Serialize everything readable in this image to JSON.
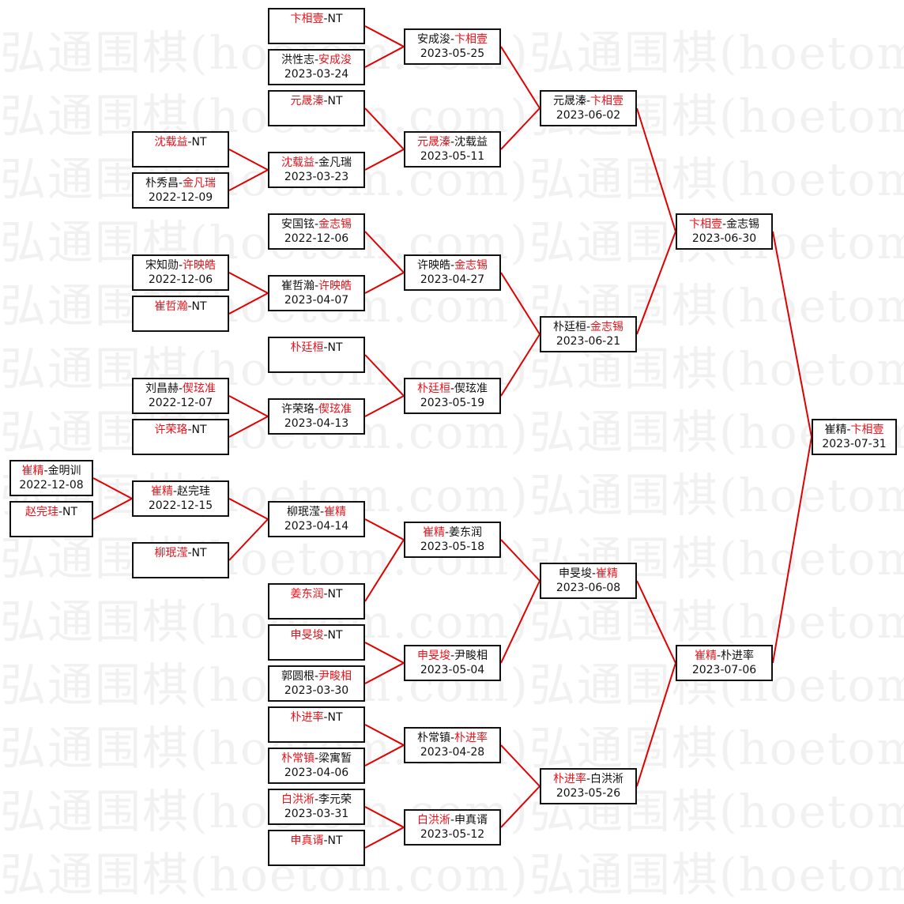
{
  "watermark": "弘通围棋(hoetom.com)",
  "colors": {
    "winner": "#e8131b",
    "line": "#e00000",
    "text": "#111111",
    "border": "#111111"
  },
  "matches": [
    {
      "id": "c0_0",
      "p1": "崔精",
      "p2": "金明训",
      "winner": 1,
      "date": "2022-12-08"
    },
    {
      "id": "c0_1",
      "p1": "赵完珪",
      "p2": "NT",
      "winner": 1,
      "date": ""
    },
    {
      "id": "c1_0",
      "p1": "沈载益",
      "p2": "NT",
      "winner": 1,
      "date": ""
    },
    {
      "id": "c1_1",
      "p1": "朴秀昌",
      "p2": "金凡瑞",
      "winner": 2,
      "date": "2022-12-09"
    },
    {
      "id": "c1_2",
      "p1": "宋知勋",
      "p2": "许映皓",
      "winner": 2,
      "date": "2022-12-06"
    },
    {
      "id": "c1_3",
      "p1": "崔哲瀚",
      "p2": "NT",
      "winner": 1,
      "date": ""
    },
    {
      "id": "c1_4",
      "p1": "刘昌赫",
      "p2": "偰玹准",
      "winner": 2,
      "date": "2022-12-07"
    },
    {
      "id": "c1_5",
      "p1": "许荣珞",
      "p2": "NT",
      "winner": 1,
      "date": ""
    },
    {
      "id": "c1_6",
      "p1": "崔精",
      "p2": "赵完珪",
      "winner": 1,
      "date": "2022-12-15"
    },
    {
      "id": "c1_7",
      "p1": "柳珉滢",
      "p2": "NT",
      "winner": 1,
      "date": ""
    },
    {
      "id": "c2_0",
      "p1": "卞相壹",
      "p2": "NT",
      "winner": 1,
      "date": ""
    },
    {
      "id": "c2_1",
      "p1": "洪性志",
      "p2": "安成浚",
      "winner": 2,
      "date": "2023-03-24"
    },
    {
      "id": "c2_2",
      "p1": "元晟溱",
      "p2": "NT",
      "winner": 1,
      "date": ""
    },
    {
      "id": "c2_3",
      "p1": "沈载益",
      "p2": "金凡瑞",
      "winner": 1,
      "date": "2023-03-23"
    },
    {
      "id": "c2_4",
      "p1": "安国铉",
      "p2": "金志锡",
      "winner": 2,
      "date": "2022-12-06"
    },
    {
      "id": "c2_5",
      "p1": "崔哲瀚",
      "p2": "许映皓",
      "winner": 2,
      "date": "2023-04-07"
    },
    {
      "id": "c2_6",
      "p1": "朴廷桓",
      "p2": "NT",
      "winner": 1,
      "date": ""
    },
    {
      "id": "c2_7",
      "p1": "许荣珞",
      "p2": "偰玹准",
      "winner": 2,
      "date": "2023-04-13"
    },
    {
      "id": "c2_8",
      "p1": "柳珉滢",
      "p2": "崔精",
      "winner": 2,
      "date": "2023-04-14"
    },
    {
      "id": "c2_9",
      "p1": "姜东润",
      "p2": "NT",
      "winner": 1,
      "date": ""
    },
    {
      "id": "c2_10",
      "p1": "申旻埈",
      "p2": "NT",
      "winner": 1,
      "date": ""
    },
    {
      "id": "c2_11",
      "p1": "郭圆根",
      "p2": "尹畯相",
      "winner": 2,
      "date": "2023-03-30"
    },
    {
      "id": "c2_12",
      "p1": "朴进率",
      "p2": "NT",
      "winner": 1,
      "date": ""
    },
    {
      "id": "c2_13",
      "p1": "朴常镇",
      "p2": "梁寓暂",
      "winner": 1,
      "date": "2023-04-06"
    },
    {
      "id": "c2_14",
      "p1": "白洪淅",
      "p2": "李元荣",
      "winner": 1,
      "date": "2023-03-31"
    },
    {
      "id": "c2_15",
      "p1": "申真谞",
      "p2": "NT",
      "winner": 1,
      "date": ""
    },
    {
      "id": "c3_0",
      "p1": "安成浚",
      "p2": "卞相壹",
      "winner": 2,
      "date": "2023-05-25"
    },
    {
      "id": "c3_1",
      "p1": "元晟溱",
      "p2": "沈载益",
      "winner": 1,
      "date": "2023-05-11"
    },
    {
      "id": "c3_2",
      "p1": "许映皓",
      "p2": "金志锡",
      "winner": 2,
      "date": "2023-04-27"
    },
    {
      "id": "c3_3",
      "p1": "朴廷桓",
      "p2": "偰玹准",
      "winner": 1,
      "date": "2023-05-19"
    },
    {
      "id": "c3_4",
      "p1": "崔精",
      "p2": "姜东润",
      "winner": 1,
      "date": "2023-05-18"
    },
    {
      "id": "c3_5",
      "p1": "申旻埈",
      "p2": "尹畯相",
      "winner": 1,
      "date": "2023-05-04"
    },
    {
      "id": "c3_6",
      "p1": "朴常镇",
      "p2": "朴进率",
      "winner": 2,
      "date": "2023-04-28"
    },
    {
      "id": "c3_7",
      "p1": "白洪淅",
      "p2": "申真谞",
      "winner": 1,
      "date": "2023-05-12"
    },
    {
      "id": "c4_0",
      "p1": "元晟溱",
      "p2": "卞相壹",
      "winner": 2,
      "date": "2023-06-02"
    },
    {
      "id": "c4_1",
      "p1": "朴廷桓",
      "p2": "金志锡",
      "winner": 2,
      "date": "2023-06-21"
    },
    {
      "id": "c4_2",
      "p1": "申旻埈",
      "p2": "崔精",
      "winner": 2,
      "date": "2023-06-08"
    },
    {
      "id": "c4_3",
      "p1": "朴进率",
      "p2": "白洪淅",
      "winner": 1,
      "date": "2023-05-26"
    },
    {
      "id": "c5_0",
      "p1": "卞相壹",
      "p2": "金志锡",
      "winner": 1,
      "date": "2023-06-30"
    },
    {
      "id": "c5_1",
      "p1": "崔精",
      "p2": "朴进率",
      "winner": 1,
      "date": "2023-07-06"
    },
    {
      "id": "c6_0",
      "p1": "崔精",
      "p2": "卞相壹",
      "winner": 2,
      "date": "2023-07-31"
    }
  ]
}
